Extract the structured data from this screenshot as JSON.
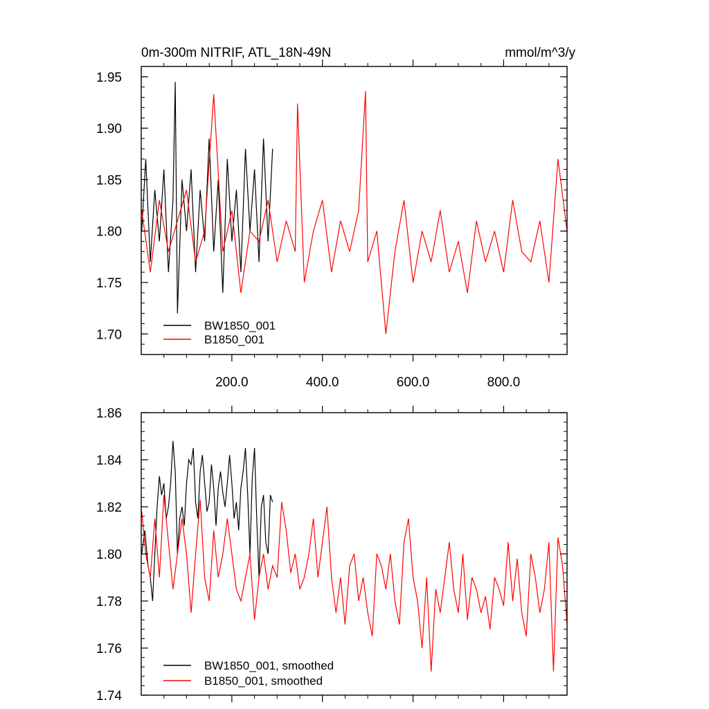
{
  "chart_data": [
    {
      "type": "line",
      "title": "0m-300m NITRIF, ATL_18N-49N",
      "units": "mmol/m^3/y",
      "xlim": [
        0,
        940
      ],
      "ylim": [
        1.68,
        1.96
      ],
      "x_ticks": [
        200,
        400,
        600,
        800
      ],
      "x_tick_labels": [
        "200.0",
        "400.0",
        "600.0",
        "800.0"
      ],
      "y_ticks": [
        1.7,
        1.75,
        1.8,
        1.85,
        1.9,
        1.95
      ],
      "y_tick_labels": [
        "1.70",
        "1.75",
        "1.80",
        "1.85",
        "1.90",
        "1.95"
      ],
      "grid": false,
      "legend_position": "bottom-left",
      "series": [
        {
          "name": "BW1850_001",
          "color": "#000000",
          "x": [
            1,
            10,
            20,
            30,
            40,
            50,
            60,
            70,
            75,
            80,
            90,
            100,
            110,
            120,
            130,
            140,
            150,
            160,
            170,
            180,
            190,
            200,
            210,
            220,
            230,
            240,
            250,
            260,
            270,
            280,
            290
          ],
          "values": [
            1.8,
            1.87,
            1.77,
            1.84,
            1.79,
            1.86,
            1.76,
            1.83,
            1.945,
            1.72,
            1.85,
            1.8,
            1.86,
            1.76,
            1.84,
            1.79,
            1.89,
            1.78,
            1.85,
            1.74,
            1.87,
            1.79,
            1.84,
            1.76,
            1.88,
            1.8,
            1.86,
            1.77,
            1.89,
            1.79,
            1.88
          ]
        },
        {
          "name": "B1850_001",
          "color": "#ff0000",
          "x": [
            1,
            20,
            40,
            60,
            80,
            100,
            120,
            140,
            160,
            180,
            200,
            220,
            240,
            260,
            280,
            300,
            320,
            340,
            345,
            360,
            380,
            400,
            420,
            440,
            460,
            480,
            495,
            500,
            520,
            540,
            560,
            580,
            600,
            620,
            640,
            660,
            680,
            700,
            720,
            740,
            760,
            780,
            800,
            820,
            840,
            860,
            880,
            900,
            920,
            940
          ],
          "values": [
            1.82,
            1.76,
            1.83,
            1.78,
            1.81,
            1.84,
            1.77,
            1.8,
            1.933,
            1.78,
            1.82,
            1.74,
            1.8,
            1.79,
            1.83,
            1.77,
            1.81,
            1.78,
            1.924,
            1.75,
            1.8,
            1.83,
            1.76,
            1.81,
            1.78,
            1.82,
            1.936,
            1.77,
            1.8,
            1.7,
            1.78,
            1.83,
            1.75,
            1.8,
            1.77,
            1.82,
            1.76,
            1.79,
            1.74,
            1.81,
            1.77,
            1.8,
            1.76,
            1.83,
            1.78,
            1.77,
            1.81,
            1.75,
            1.87,
            1.8
          ]
        }
      ]
    },
    {
      "type": "line",
      "xlim": [
        0,
        940
      ],
      "ylim": [
        1.74,
        1.86
      ],
      "y_ticks": [
        1.74,
        1.76,
        1.78,
        1.8,
        1.82,
        1.84,
        1.86
      ],
      "y_tick_labels": [
        "1.74",
        "1.76",
        "1.78",
        "1.80",
        "1.82",
        "1.84",
        "1.86"
      ],
      "grid": false,
      "legend_position": "bottom-left",
      "series": [
        {
          "name": "BW1850_001, smoothed",
          "color": "#000000",
          "x": [
            1,
            8,
            15,
            20,
            25,
            30,
            35,
            40,
            45,
            50,
            55,
            60,
            65,
            70,
            75,
            80,
            85,
            90,
            95,
            100,
            105,
            110,
            115,
            120,
            125,
            130,
            135,
            140,
            145,
            150,
            155,
            160,
            165,
            170,
            175,
            180,
            185,
            190,
            195,
            200,
            205,
            210,
            215,
            220,
            225,
            230,
            235,
            240,
            245,
            250,
            255,
            260,
            265,
            270,
            275,
            280,
            285,
            290
          ],
          "values": [
            1.8,
            1.81,
            1.795,
            1.79,
            1.78,
            1.8,
            1.82,
            1.833,
            1.825,
            1.83,
            1.815,
            1.82,
            1.83,
            1.848,
            1.835,
            1.8,
            1.815,
            1.82,
            1.812,
            1.83,
            1.84,
            1.838,
            1.845,
            1.822,
            1.815,
            1.835,
            1.842,
            1.83,
            1.818,
            1.822,
            1.838,
            1.828,
            1.812,
            1.828,
            1.835,
            1.826,
            1.82,
            1.83,
            1.842,
            1.83,
            1.815,
            1.822,
            1.81,
            1.828,
            1.835,
            1.845,
            1.825,
            1.8,
            1.832,
            1.845,
            1.815,
            1.79,
            1.82,
            1.825,
            1.805,
            1.8,
            1.825,
            1.822
          ]
        },
        {
          "name": "B1850_001, smoothed",
          "color": "#ff0000",
          "x": [
            1,
            10,
            20,
            30,
            40,
            50,
            60,
            70,
            80,
            90,
            100,
            110,
            120,
            130,
            140,
            150,
            160,
            170,
            180,
            190,
            200,
            210,
            220,
            230,
            240,
            250,
            260,
            270,
            280,
            290,
            300,
            310,
            320,
            330,
            340,
            350,
            360,
            370,
            380,
            390,
            400,
            410,
            420,
            430,
            440,
            450,
            460,
            470,
            480,
            490,
            500,
            510,
            520,
            530,
            540,
            550,
            560,
            570,
            580,
            590,
            600,
            610,
            620,
            630,
            640,
            650,
            660,
            670,
            680,
            690,
            700,
            710,
            720,
            730,
            740,
            750,
            760,
            770,
            780,
            790,
            800,
            810,
            820,
            830,
            840,
            850,
            860,
            870,
            880,
            890,
            900,
            910,
            920,
            930,
            940
          ],
          "values": [
            1.818,
            1.8,
            1.79,
            1.815,
            1.79,
            1.825,
            1.805,
            1.785,
            1.8,
            1.815,
            1.8,
            1.775,
            1.8,
            1.823,
            1.79,
            1.78,
            1.81,
            1.79,
            1.8,
            1.815,
            1.8,
            1.785,
            1.78,
            1.79,
            1.8,
            1.772,
            1.79,
            1.8,
            1.785,
            1.795,
            1.79,
            1.822,
            1.81,
            1.792,
            1.8,
            1.785,
            1.79,
            1.8,
            1.815,
            1.79,
            1.805,
            1.82,
            1.79,
            1.775,
            1.79,
            1.77,
            1.795,
            1.8,
            1.78,
            1.79,
            1.775,
            1.765,
            1.8,
            1.795,
            1.785,
            1.8,
            1.78,
            1.77,
            1.805,
            1.815,
            1.79,
            1.78,
            1.76,
            1.79,
            1.75,
            1.785,
            1.775,
            1.79,
            1.805,
            1.785,
            1.775,
            1.8,
            1.772,
            1.79,
            1.785,
            1.775,
            1.782,
            1.768,
            1.79,
            1.785,
            1.778,
            1.805,
            1.78,
            1.798,
            1.775,
            1.765,
            1.8,
            1.79,
            1.775,
            1.785,
            1.805,
            1.75,
            1.807,
            1.795,
            1.77
          ]
        }
      ]
    }
  ]
}
